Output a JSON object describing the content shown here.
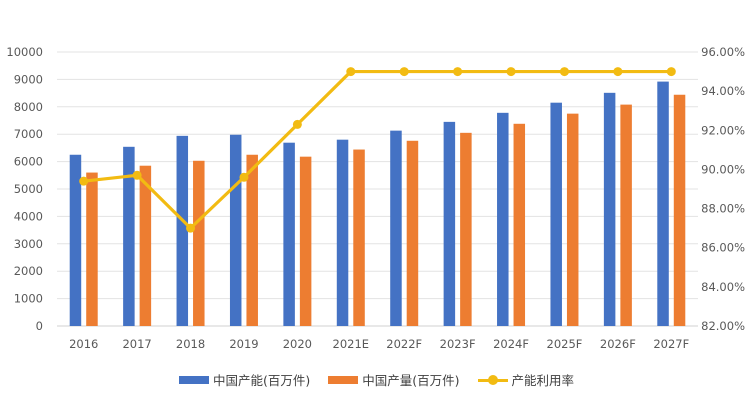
{
  "chart_data": {
    "type": "bar+line",
    "categories": [
      "2016",
      "2017",
      "2018",
      "2019",
      "2020",
      "2021E",
      "2022F",
      "2023F",
      "2024F",
      "2025F",
      "2026F",
      "2027F"
    ],
    "series": [
      {
        "name": "中国产能(百万件)",
        "type": "bar",
        "axis": "left",
        "color": "#4472c4",
        "values": [
          6250,
          6540,
          6940,
          6980,
          6690,
          6800,
          7130,
          7450,
          7780,
          8150,
          8510,
          8920
        ]
      },
      {
        "name": "中国产量(百万件)",
        "type": "bar",
        "axis": "left",
        "color": "#ed7d31",
        "values": [
          5600,
          5850,
          6030,
          6250,
          6180,
          6440,
          6760,
          7050,
          7380,
          7750,
          8080,
          8440
        ]
      },
      {
        "name": "产能利用率",
        "type": "line",
        "axis": "right",
        "color": "#f2bb12",
        "values": [
          89.4,
          89.7,
          87.0,
          89.6,
          92.3,
          95.0,
          95.0,
          95.0,
          95.0,
          95.0,
          95.0,
          95.0
        ]
      }
    ],
    "left_axis": {
      "range": [
        0,
        10000
      ],
      "ticks": [
        "0",
        "1000",
        "2000",
        "3000",
        "4000",
        "5000",
        "6000",
        "7000",
        "8000",
        "9000",
        "10000"
      ]
    },
    "right_axis": {
      "range": [
        82,
        96
      ],
      "ticks": [
        "82.00%",
        "84.00%",
        "86.00%",
        "88.00%",
        "90.00%",
        "92.00%",
        "94.00%",
        "96.00%"
      ]
    },
    "grid": true,
    "legend": "bottom"
  }
}
